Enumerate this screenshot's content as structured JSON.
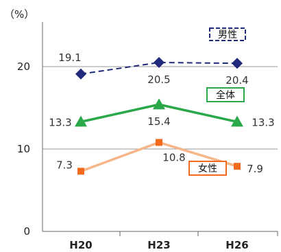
{
  "chart_data": {
    "type": "line",
    "unit_label": "（%）",
    "categories": [
      "H20",
      "H23",
      "H26"
    ],
    "yticks": [
      0,
      10,
      20
    ],
    "ylim": [
      0,
      25
    ],
    "grid": true,
    "series": [
      {
        "name": "男性",
        "values": [
          19.1,
          20.5,
          20.4
        ],
        "labels": [
          "19.1",
          "20.5",
          "20.4"
        ],
        "color": "#1f2a7a",
        "marker": "diamond",
        "line_style": "dashed",
        "label_box_style": "dashed"
      },
      {
        "name": "全体",
        "values": [
          13.3,
          15.4,
          13.3
        ],
        "labels": [
          "13.3",
          "15.4",
          "13.3"
        ],
        "color": "#2aa84a",
        "marker": "triangle",
        "line_style": "solid",
        "label_box_style": "solid"
      },
      {
        "name": "女性",
        "values": [
          7.3,
          10.8,
          7.9
        ],
        "labels": [
          "7.3",
          "10.8",
          "7.9"
        ],
        "color": "#f26a1b",
        "line_color": "#f6b688",
        "marker": "square",
        "line_style": "solid",
        "label_box_style": "solid"
      }
    ]
  }
}
